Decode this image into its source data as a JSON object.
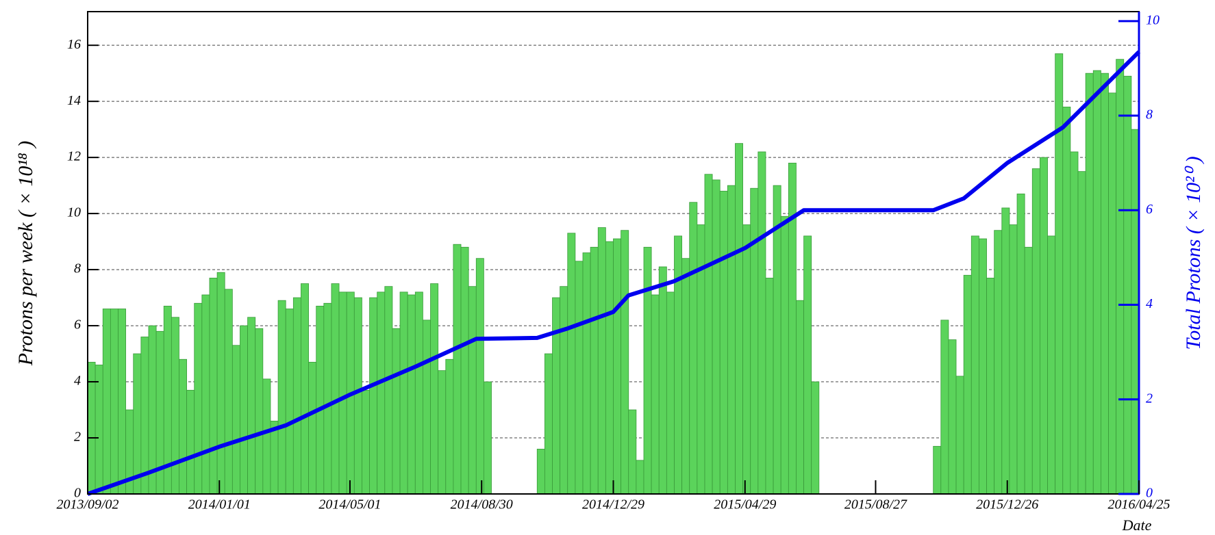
{
  "chart_data": [
    {
      "type": "histogram",
      "ylabel": "Protons per week ( × 10¹⁸ )",
      "xlabel": "Date",
      "xlim": [
        "2013/09/02",
        "2016/04/25"
      ],
      "xticks": [
        "2013/09/02",
        "2014/01/01",
        "2014/05/01",
        "2014/08/30",
        "2014/12/29",
        "2015/04/29",
        "2015/08/27",
        "2015/12/26",
        "2016/04/25"
      ],
      "ylim": [
        0,
        17.2
      ],
      "yticks": [
        0,
        2,
        4,
        6,
        8,
        10,
        12,
        14,
        16
      ],
      "grid": true,
      "color": "#5bd35b",
      "edge_color": "#3a9a3a",
      "bins": [
        "2013/09/02",
        "2013/09/09",
        "2013/09/16",
        "2013/09/23",
        "2013/09/30",
        "2013/10/07",
        "2013/10/14",
        "2013/10/21",
        "2013/10/28",
        "2013/11/04",
        "2013/11/11",
        "2013/11/18",
        "2013/11/25",
        "2013/12/02",
        "2013/12/09",
        "2013/12/16",
        "2013/12/23",
        "2013/12/30",
        "2014/01/06",
        "2014/01/13",
        "2014/01/20",
        "2014/01/27",
        "2014/02/03",
        "2014/02/10",
        "2014/02/17",
        "2014/02/24",
        "2014/03/03",
        "2014/03/10",
        "2014/03/17",
        "2014/03/24",
        "2014/03/31",
        "2014/04/07",
        "2014/04/14",
        "2014/04/21",
        "2014/04/28",
        "2014/05/05",
        "2014/05/12",
        "2014/05/19",
        "2014/05/26",
        "2014/06/02",
        "2014/06/09",
        "2014/06/16",
        "2014/06/23",
        "2014/06/30",
        "2014/07/07",
        "2014/07/14",
        "2014/07/21",
        "2014/07/28",
        "2014/08/04",
        "2014/08/11",
        "2014/08/18",
        "2014/08/25",
        "2014/09/01",
        "2014/09/08",
        "2014/09/15",
        "2014/09/22",
        "2014/09/29",
        "2014/10/06",
        "2014/10/13",
        "2014/10/20",
        "2014/10/27",
        "2014/11/03",
        "2014/11/10",
        "2014/11/17",
        "2014/11/24",
        "2014/12/01",
        "2014/12/08",
        "2014/12/15",
        "2014/12/22",
        "2014/12/29",
        "2015/01/05",
        "2015/01/12",
        "2015/01/19",
        "2015/01/26",
        "2015/02/02",
        "2015/02/09",
        "2015/02/16",
        "2015/02/23",
        "2015/03/02",
        "2015/03/09",
        "2015/03/16",
        "2015/03/23",
        "2015/03/30",
        "2015/04/06",
        "2015/04/13",
        "2015/04/20",
        "2015/04/27",
        "2015/05/04",
        "2015/05/11",
        "2015/05/18",
        "2015/05/25",
        "2015/06/01",
        "2015/06/08",
        "2015/06/15",
        "2015/06/22",
        "2015/06/29",
        "2015/07/06",
        "2015/07/13",
        "2015/07/20",
        "2015/07/27",
        "2015/08/03",
        "2015/08/10",
        "2015/08/17",
        "2015/08/24",
        "2015/08/31",
        "2015/09/07",
        "2015/09/14",
        "2015/09/21",
        "2015/09/28",
        "2015/10/05",
        "2015/10/12",
        "2015/10/19",
        "2015/10/26",
        "2015/11/02",
        "2015/11/09",
        "2015/11/16",
        "2015/11/23",
        "2015/11/30",
        "2015/12/07",
        "2015/12/14",
        "2015/12/21",
        "2015/12/28",
        "2016/01/04",
        "2016/01/11",
        "2016/01/18",
        "2016/01/25",
        "2016/02/01",
        "2016/02/08",
        "2016/02/15",
        "2016/02/22",
        "2016/02/29",
        "2016/03/07",
        "2016/03/14",
        "2016/03/21",
        "2016/03/28",
        "2016/04/04",
        "2016/04/11",
        "2016/04/18",
        "2016/04/25"
      ],
      "values": [
        4.7,
        4.6,
        6.6,
        6.6,
        6.6,
        3.0,
        5.0,
        5.6,
        6.0,
        5.8,
        6.7,
        6.3,
        4.8,
        3.7,
        6.8,
        7.1,
        7.7,
        7.9,
        7.3,
        5.3,
        6.0,
        6.3,
        5.9,
        4.1,
        2.6,
        6.9,
        6.6,
        7.0,
        7.5,
        4.7,
        6.7,
        6.8,
        7.5,
        7.2,
        7.2,
        7.0,
        3.7,
        7.0,
        7.2,
        7.4,
        5.9,
        7.2,
        7.1,
        7.2,
        6.2,
        7.5,
        4.4,
        4.8,
        8.9,
        8.8,
        7.4,
        8.4,
        4.0,
        0,
        0,
        0,
        0,
        0,
        0,
        1.6,
        5.0,
        7.0,
        7.4,
        9.3,
        8.3,
        8.6,
        8.8,
        9.5,
        9.0,
        9.1,
        9.4,
        3.0,
        1.2,
        8.8,
        7.1,
        8.1,
        7.2,
        9.2,
        8.4,
        10.4,
        9.6,
        11.4,
        11.2,
        10.8,
        11.0,
        12.5,
        9.6,
        10.9,
        12.2,
        7.7,
        11.0,
        9.9,
        11.8,
        6.9,
        9.2,
        4.0,
        0,
        0,
        0,
        0,
        0,
        0,
        0,
        0,
        0,
        0,
        0,
        0,
        0,
        0,
        0,
        1.7,
        6.2,
        5.5,
        4.2,
        7.8,
        9.2,
        9.1,
        7.7,
        9.4,
        10.2,
        9.6,
        10.7,
        8.8,
        11.6,
        12.0,
        9.2,
        15.7,
        13.8,
        12.2,
        11.5,
        15.0,
        15.1,
        15.0,
        14.3,
        15.5,
        14.9,
        13.0
      ]
    },
    {
      "type": "line",
      "axis": "y2",
      "y2label": "Total Protons ( × 10²⁰ )",
      "y2lim": [
        0,
        10.2
      ],
      "y2ticks": [
        0,
        2,
        4,
        6,
        8,
        10
      ],
      "color": "#0000ee",
      "x": [
        "2013/09/02",
        "2013/10/28",
        "2014/01/01",
        "2014/03/03",
        "2014/05/01",
        "2014/07/01",
        "2014/08/25",
        "2014/10/20",
        "2014/11/17",
        "2014/12/29",
        "2015/01/12",
        "2015/02/23",
        "2015/04/29",
        "2015/06/22",
        "2015/10/19",
        "2015/11/16",
        "2015/12/26",
        "2016/02/15",
        "2016/04/25"
      ],
      "values": [
        0,
        0.45,
        1.0,
        1.45,
        2.1,
        2.7,
        3.28,
        3.3,
        3.5,
        3.85,
        4.2,
        4.5,
        5.2,
        6.0,
        6.0,
        6.25,
        7.0,
        7.75,
        9.35
      ]
    }
  ]
}
